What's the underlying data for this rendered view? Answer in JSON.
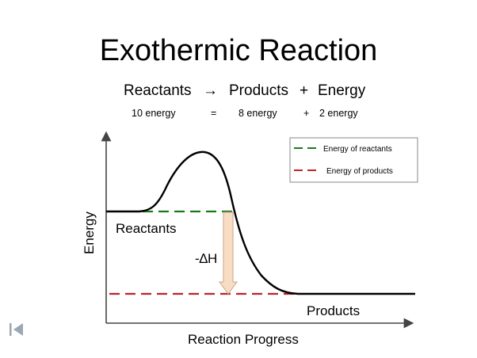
{
  "title": "Exothermic Reaction",
  "equation": {
    "reactants": "Reactants",
    "arrow": "→",
    "products": "Products",
    "plus": "+",
    "energy": "Energy"
  },
  "amounts": {
    "reactants": "10 energy",
    "equals": "=",
    "products": "8 energy",
    "plus": "+",
    "released": "2 energy"
  },
  "diagram": {
    "y_axis_label": "Energy",
    "x_axis_label": "Reaction Progress",
    "reactants_label": "Reactants",
    "products_label": "Products",
    "delta_h_label": "-∆H",
    "legend": [
      {
        "label": "Energy of reactants",
        "color": "#1a7a1a"
      },
      {
        "label": "Energy of products",
        "color": "#c0222a"
      }
    ],
    "curve_color": "#000000",
    "arrow_fill": "#f9dcc4",
    "arrow_stroke": "#c9a58a"
  },
  "nav": {
    "icon": "first-slide-icon"
  }
}
